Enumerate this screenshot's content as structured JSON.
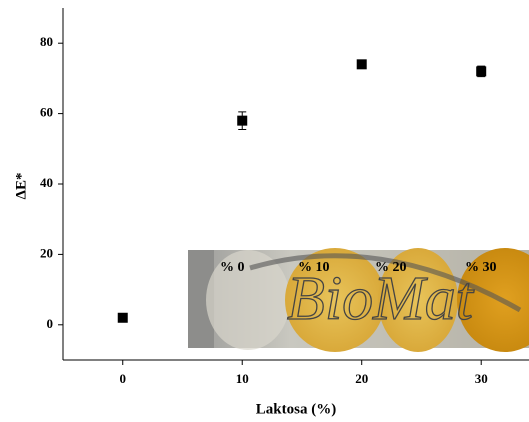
{
  "chart_data": {
    "type": "scatter",
    "x_label": "Laktosa  (%)",
    "y_label": "ΔE*",
    "x": [
      0,
      10,
      20,
      30
    ],
    "values": [
      2,
      58,
      74,
      72
    ],
    "errors": [
      0.5,
      2.5,
      1,
      1.5
    ],
    "color": "#000000",
    "xlim": [
      -5,
      34
    ],
    "xticks": [
      0,
      10,
      20,
      30
    ],
    "ylim": [
      -10,
      90
    ],
    "yticks": [
      0,
      20,
      40,
      60,
      80
    ],
    "inset": {
      "labels": [
        "% 0",
        "% 10",
        "% 20",
        "% 30"
      ],
      "watermark": "BioMat"
    }
  }
}
